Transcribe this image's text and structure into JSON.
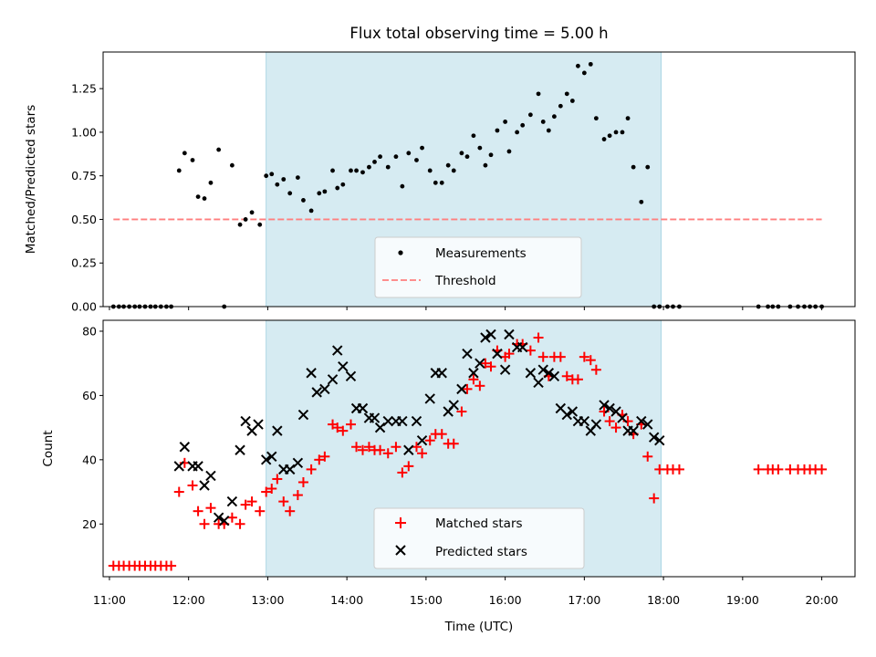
{
  "chart_data": [
    {
      "type": "scatter",
      "panel": "top",
      "title": "Flux total observing time = 5.00 h",
      "xlabel": "",
      "ylabel": "Matched/Predicted stars",
      "xlim": [
        10.92,
        20.42
      ],
      "ylim": [
        0.0,
        1.46
      ],
      "yticks": [
        0.0,
        0.25,
        0.5,
        0.75,
        1.0,
        1.25
      ],
      "ytick_labels": [
        "0.00",
        "0.25",
        "0.50",
        "0.75",
        "1.00",
        "1.25"
      ],
      "shaded_span": {
        "x0": 12.98,
        "x1": 17.97,
        "color": "#add8e6"
      },
      "threshold": {
        "name": "Threshold",
        "y": 0.5,
        "x0": 11.05,
        "x1": 20.0,
        "color": "#ff7f7f"
      },
      "legend": {
        "position": "lower center",
        "entries": [
          "Measurements",
          "Threshold"
        ]
      },
      "series": [
        {
          "name": "Measurements",
          "color": "#000000",
          "x": [
            11.05,
            11.12,
            11.18,
            11.25,
            11.32,
            11.38,
            11.45,
            11.52,
            11.58,
            11.65,
            11.72,
            11.78,
            11.88,
            11.95,
            12.05,
            12.12,
            12.2,
            12.28,
            12.38,
            12.45,
            12.55,
            12.65,
            12.72,
            12.8,
            12.9,
            12.98,
            13.05,
            13.12,
            13.2,
            13.28,
            13.38,
            13.45,
            13.55,
            13.65,
            13.72,
            13.82,
            13.88,
            13.95,
            14.05,
            14.12,
            14.2,
            14.28,
            14.35,
            14.42,
            14.52,
            14.62,
            14.7,
            14.78,
            14.88,
            14.95,
            15.05,
            15.12,
            15.2,
            15.28,
            15.35,
            15.45,
            15.52,
            15.6,
            15.68,
            15.75,
            15.82,
            15.9,
            16.0,
            16.05,
            16.15,
            16.22,
            16.32,
            16.42,
            16.48,
            16.55,
            16.62,
            16.7,
            16.78,
            16.85,
            16.92,
            17.0,
            17.08,
            17.15,
            17.25,
            17.32,
            17.4,
            17.48,
            17.55,
            17.62,
            17.72,
            17.8,
            17.88,
            17.95,
            18.05,
            18.12,
            18.2,
            19.2,
            19.32,
            19.38,
            19.45,
            19.6,
            19.7,
            19.78,
            19.85,
            19.92,
            20.0
          ],
          "y": [
            0,
            0,
            0,
            0,
            0,
            0,
            0,
            0,
            0,
            0,
            0,
            0,
            0.78,
            0.88,
            0.84,
            0.63,
            0.62,
            0.71,
            0.9,
            0,
            0.81,
            0.47,
            0.5,
            0.54,
            0.47,
            0.75,
            0.76,
            0.7,
            0.73,
            0.65,
            0.74,
            0.61,
            0.55,
            0.65,
            0.66,
            0.78,
            0.68,
            0.7,
            0.78,
            0.78,
            0.77,
            0.8,
            0.83,
            0.86,
            0.8,
            0.86,
            0.69,
            0.88,
            0.84,
            0.91,
            0.78,
            0.71,
            0.71,
            0.81,
            0.78,
            0.88,
            0.86,
            0.98,
            0.91,
            0.81,
            0.87,
            1.01,
            1.06,
            0.89,
            1.0,
            1.04,
            1.1,
            1.22,
            1.06,
            1.01,
            1.09,
            1.15,
            1.22,
            1.18,
            1.38,
            1.34,
            1.39,
            1.08,
            0.96,
            0.98,
            1.0,
            1.0,
            1.08,
            0.8,
            0.6,
            0.8,
            0,
            0,
            0,
            0,
            0,
            0,
            0,
            0,
            0,
            0,
            0,
            0,
            0,
            0,
            0
          ]
        }
      ]
    },
    {
      "type": "scatter",
      "panel": "bottom",
      "xlabel": "Time (UTC)",
      "ylabel": "Count",
      "xlim": [
        10.92,
        20.42
      ],
      "ylim": [
        3.6,
        83.4
      ],
      "yticks": [
        20,
        40,
        60,
        80
      ],
      "xticks": [
        11,
        12,
        13,
        14,
        15,
        16,
        17,
        18,
        19,
        20
      ],
      "xtick_labels": [
        "11:00",
        "12:00",
        "13:00",
        "14:00",
        "15:00",
        "16:00",
        "17:00",
        "18:00",
        "19:00",
        "20:00"
      ],
      "shaded_span": {
        "x0": 12.98,
        "x1": 17.97,
        "color": "#add8e6"
      },
      "legend": {
        "position": "lower center",
        "entries": [
          "Matched stars",
          "Predicted stars"
        ]
      },
      "series": [
        {
          "name": "Matched stars",
          "marker": "+",
          "color": "#ff0000",
          "x": [
            11.05,
            11.12,
            11.18,
            11.25,
            11.32,
            11.38,
            11.45,
            11.52,
            11.58,
            11.65,
            11.72,
            11.78,
            11.88,
            11.95,
            12.05,
            12.12,
            12.2,
            12.28,
            12.38,
            12.45,
            12.55,
            12.65,
            12.72,
            12.8,
            12.9,
            12.98,
            13.05,
            13.12,
            13.2,
            13.28,
            13.38,
            13.45,
            13.55,
            13.65,
            13.72,
            13.82,
            13.88,
            13.95,
            14.05,
            14.12,
            14.2,
            14.28,
            14.35,
            14.42,
            14.52,
            14.62,
            14.7,
            14.78,
            14.88,
            14.95,
            15.05,
            15.12,
            15.2,
            15.28,
            15.35,
            15.45,
            15.52,
            15.6,
            15.68,
            15.75,
            15.82,
            15.9,
            16.0,
            16.05,
            16.15,
            16.22,
            16.32,
            16.42,
            16.48,
            16.55,
            16.62,
            16.7,
            16.78,
            16.85,
            16.92,
            17.0,
            17.08,
            17.15,
            17.25,
            17.32,
            17.4,
            17.48,
            17.55,
            17.62,
            17.72,
            17.8,
            17.88,
            17.95,
            18.05,
            18.12,
            18.2,
            19.2,
            19.32,
            19.38,
            19.45,
            19.6,
            19.7,
            19.78,
            19.85,
            19.92,
            20.0
          ],
          "y": [
            7,
            7,
            7,
            7,
            7,
            7,
            7,
            7,
            7,
            7,
            7,
            7,
            30,
            39,
            32,
            24,
            20,
            25,
            20,
            20,
            22,
            20,
            26,
            27,
            24,
            30,
            31,
            34,
            27,
            24,
            29,
            33,
            37,
            40,
            41,
            51,
            50,
            49,
            51,
            44,
            43,
            44,
            43,
            43,
            42,
            44,
            36,
            38,
            44,
            42,
            46,
            48,
            48,
            45,
            45,
            55,
            62,
            65,
            63,
            70,
            69,
            74,
            72,
            73,
            76,
            76,
            74,
            78,
            72,
            66,
            72,
            72,
            66,
            65,
            65,
            72,
            71,
            68,
            55,
            52,
            50,
            54,
            52,
            48,
            51,
            41,
            28,
            37,
            37,
            37,
            37,
            37,
            37,
            37,
            37,
            37,
            37,
            37,
            37,
            37,
            37
          ]
        },
        {
          "name": "Predicted stars",
          "marker": "x",
          "color": "#000000",
          "x": [
            11.88,
            11.95,
            12.05,
            12.12,
            12.2,
            12.28,
            12.38,
            12.45,
            12.55,
            12.65,
            12.72,
            12.8,
            12.88,
            12.98,
            13.05,
            13.12,
            13.2,
            13.28,
            13.38,
            13.45,
            13.55,
            13.62,
            13.72,
            13.82,
            13.88,
            13.95,
            14.05,
            14.12,
            14.2,
            14.28,
            14.35,
            14.42,
            14.52,
            14.62,
            14.7,
            14.78,
            14.88,
            14.95,
            15.05,
            15.12,
            15.2,
            15.28,
            15.35,
            15.45,
            15.52,
            15.6,
            15.68,
            15.75,
            15.82,
            15.9,
            16.0,
            16.05,
            16.15,
            16.22,
            16.32,
            16.42,
            16.48,
            16.55,
            16.62,
            16.7,
            16.78,
            16.85,
            16.92,
            17.0,
            17.08,
            17.15,
            17.25,
            17.32,
            17.4,
            17.48,
            17.55,
            17.62,
            17.72,
            17.8,
            17.88,
            17.95
          ],
          "y": [
            38,
            44,
            38,
            38,
            32,
            35,
            22,
            21,
            27,
            43,
            52,
            49,
            51,
            40,
            41,
            49,
            37,
            37,
            39,
            54,
            67,
            61,
            62,
            65,
            74,
            69,
            66,
            56,
            56,
            53,
            53,
            50,
            52,
            52,
            52,
            43,
            52,
            46,
            59,
            67,
            67,
            55,
            57,
            62,
            73,
            67,
            70,
            78,
            79,
            73,
            68,
            79,
            75,
            75,
            67,
            64,
            68,
            67,
            66,
            56,
            54,
            55,
            52,
            52,
            49,
            51,
            57,
            56,
            55,
            53,
            49,
            49,
            52,
            51,
            47,
            46
          ]
        }
      ]
    }
  ]
}
